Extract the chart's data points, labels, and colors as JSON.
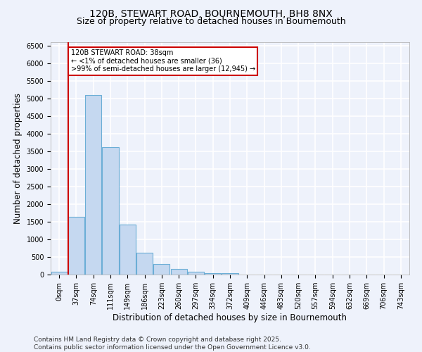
{
  "title": "120B, STEWART ROAD, BOURNEMOUTH, BH8 8NX",
  "subtitle": "Size of property relative to detached houses in Bournemouth",
  "xlabel": "Distribution of detached houses by size in Bournemouth",
  "ylabel": "Number of detached properties",
  "categories": [
    "0sqm",
    "37sqm",
    "74sqm",
    "111sqm",
    "149sqm",
    "186sqm",
    "223sqm",
    "260sqm",
    "297sqm",
    "334sqm",
    "372sqm",
    "409sqm",
    "446sqm",
    "483sqm",
    "520sqm",
    "557sqm",
    "594sqm",
    "632sqm",
    "669sqm",
    "706sqm",
    "743sqm"
  ],
  "values": [
    75,
    1650,
    5100,
    3620,
    1420,
    620,
    310,
    155,
    90,
    40,
    50,
    0,
    0,
    0,
    0,
    0,
    0,
    0,
    0,
    0,
    0
  ],
  "bar_color": "#c5d8f0",
  "bar_edge_color": "#6baed6",
  "background_color": "#eef2fb",
  "grid_color": "#ffffff",
  "vline_color": "#cc0000",
  "annotation_text": "120B STEWART ROAD: 38sqm\n← <1% of detached houses are smaller (36)\n>99% of semi-detached houses are larger (12,945) →",
  "annotation_box_facecolor": "#ffffff",
  "annotation_edge_color": "#cc0000",
  "ylim": [
    0,
    6600
  ],
  "yticks": [
    0,
    500,
    1000,
    1500,
    2000,
    2500,
    3000,
    3500,
    4000,
    4500,
    5000,
    5500,
    6000,
    6500
  ],
  "footer": "Contains HM Land Registry data © Crown copyright and database right 2025.\nContains public sector information licensed under the Open Government Licence v3.0.",
  "title_fontsize": 10,
  "subtitle_fontsize": 9,
  "xlabel_fontsize": 8.5,
  "ylabel_fontsize": 8.5,
  "tick_fontsize": 7,
  "footer_fontsize": 6.5
}
